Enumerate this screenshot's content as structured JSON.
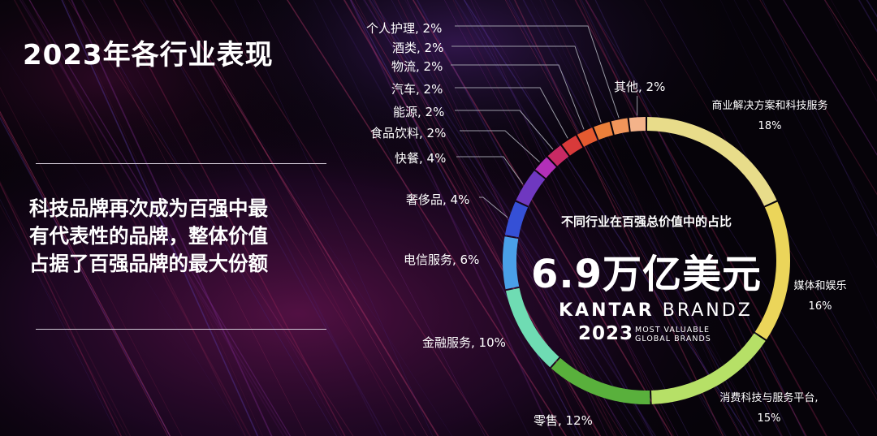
{
  "page": {
    "title": "2023年各行业表现",
    "headline_lines": [
      "科技品牌再次成为百强中最",
      "有代表性的品牌，整体价值",
      "占据了百强品牌的最大份额"
    ]
  },
  "center": {
    "subtitle": "不同行业在百强总价值中的占比",
    "total": "6.9万亿美元",
    "brand_a": "KANTAR",
    "brand_b": "BRANDZ",
    "year": "2023",
    "tagline_1": "MOST VALUABLE",
    "tagline_2": "GLOBAL BRANDS"
  },
  "chart_data": {
    "type": "pie",
    "title": "不同行业在百强总价值中的占比",
    "slices": [
      {
        "label": "商业解决方案和科技服务",
        "value": 18,
        "display": "18%",
        "color": "#e8dc8a"
      },
      {
        "label": "媒体和娱乐",
        "value": 16,
        "display": "16%",
        "color": "#ebd55a"
      },
      {
        "label": "消费科技与服务平台,",
        "value": 15,
        "display": "15%",
        "color": "#b6e067"
      },
      {
        "label": "零售",
        "value": 12,
        "display": "零售, 12%",
        "color": "#59b03c"
      },
      {
        "label": "金融服务",
        "value": 10,
        "display": "金融服务, 10%",
        "color": "#6fdcb3"
      },
      {
        "label": "电信服务",
        "value": 6,
        "display": "电信服务, 6%",
        "color": "#4a9fe8"
      },
      {
        "label": "奢侈品",
        "value": 4,
        "display": "奢侈品, 4%",
        "color": "#3550d6"
      },
      {
        "label": "快餐",
        "value": 4,
        "display": "快餐, 4%",
        "color": "#6f38c0"
      },
      {
        "label": "食品饮料",
        "value": 2,
        "display": "食品饮料, 2%",
        "color": "#b22fb8"
      },
      {
        "label": "能源",
        "value": 2,
        "display": "能源, 2%",
        "color": "#c82a64"
      },
      {
        "label": "汽车",
        "value": 2,
        "display": "汽车, 2%",
        "color": "#d83a3a"
      },
      {
        "label": "物流",
        "value": 2,
        "display": "物流, 2%",
        "color": "#e55a30"
      },
      {
        "label": "酒类",
        "value": 2,
        "display": "酒类, 2%",
        "color": "#ec7f3a"
      },
      {
        "label": "个人护理",
        "value": 2,
        "display": "个人护理, 2%",
        "color": "#f0955a"
      },
      {
        "label": "其他",
        "value": 2,
        "display": "其他, 2%",
        "color": "#f4b38a"
      }
    ]
  }
}
